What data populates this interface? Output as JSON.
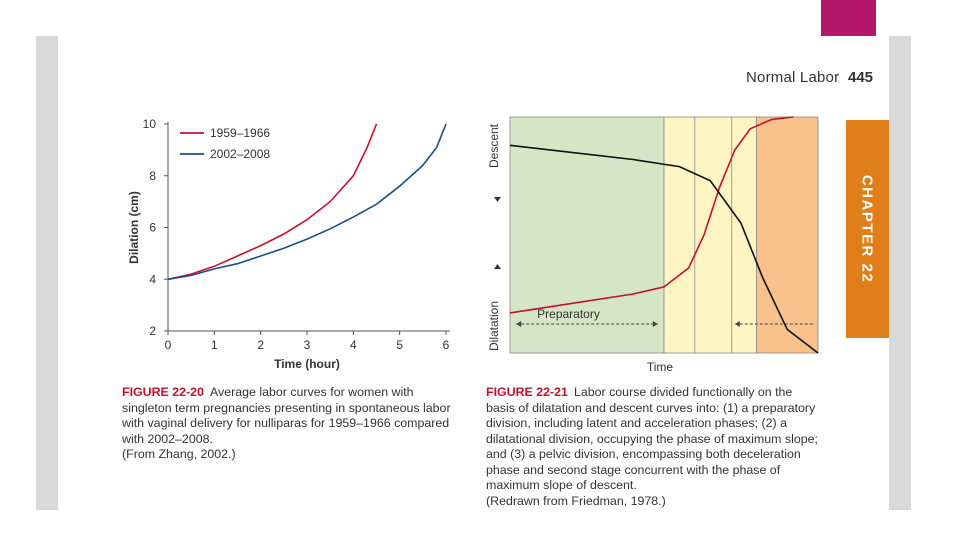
{
  "page": {
    "running_title": "Normal Labor",
    "page_number": "445",
    "chapter_tab": "CHAPTER 22",
    "colors": {
      "accent": "#b5176b",
      "tab": "#e07f1a",
      "red_series": "#c8102e",
      "blue_series": "#1a4f8a"
    }
  },
  "figure_left": {
    "caption_label": "FIGURE 22-20",
    "caption_text": "Average labor curves for women with singleton term pregnancies presenting in spontaneous labor with vaginal delivery for nulliparas for 1959–1966 compared with 2002–2008.",
    "caption_credit": "(From Zhang, 2002.)"
  },
  "figure_right": {
    "caption_label": "FIGURE 22-21",
    "caption_text": "Labor course divided functionally on the basis of dilatation and descent curves into: (1) a preparatory division, including latent and acceleration phases; (2) a dilatational division, occupying the phase of maximum slope; and (3) a pelvic division, encompassing both deceleration phase and second stage concurrent with the phase of maximum slope of descent.",
    "caption_credit": "(Redrawn from Friedman, 1978.)",
    "division_label": "Preparatory",
    "ylabel_top": "Descent",
    "ylabel_bottom": "Dilatation",
    "xlabel": "Time"
  },
  "chart_data": [
    {
      "type": "line",
      "title": "",
      "xlabel": "Time (hour)",
      "ylabel": "Dilation (cm)",
      "xlim": [
        0,
        6
      ],
      "ylim": [
        2,
        10
      ],
      "xticks": [
        0,
        1,
        2,
        3,
        4,
        5,
        6
      ],
      "yticks": [
        2,
        4,
        6,
        8,
        10
      ],
      "grid": false,
      "legend": "top-left",
      "series": [
        {
          "name": "1959–1966",
          "color": "#c8102e",
          "x": [
            0,
            0.5,
            1,
            1.5,
            2,
            2.5,
            3,
            3.5,
            4,
            4.3,
            4.5
          ],
          "y": [
            4,
            4.2,
            4.5,
            4.9,
            5.3,
            5.75,
            6.3,
            7.0,
            8.0,
            9.1,
            10
          ]
        },
        {
          "name": "2002–2008",
          "color": "#1a4f8a",
          "x": [
            0,
            0.5,
            1,
            1.5,
            2,
            2.5,
            3,
            3.5,
            4,
            4.5,
            5,
            5.5,
            5.8,
            6
          ],
          "y": [
            4,
            4.15,
            4.4,
            4.6,
            4.9,
            5.2,
            5.55,
            5.95,
            6.4,
            6.9,
            7.6,
            8.4,
            9.1,
            10
          ]
        }
      ]
    },
    {
      "type": "area",
      "title": "",
      "xlabel": "Time",
      "ylabel": "Dilatation / Descent",
      "xlim": [
        0,
        1
      ],
      "ylim": [
        0,
        1
      ],
      "grid": false,
      "regions": [
        {
          "label": "Preparatory",
          "from": 0.0,
          "to": 0.5,
          "color": "#d5e6c6"
        },
        {
          "label": "",
          "from": 0.5,
          "to": 0.8,
          "color": "#fff5c4"
        },
        {
          "label": "",
          "from": 0.8,
          "to": 1.0,
          "color": "#f9c28c"
        }
      ],
      "series": [
        {
          "name": "",
          "color": "#c8102e",
          "x": [
            0,
            0.2,
            0.4,
            0.5,
            0.58,
            0.63,
            0.68,
            0.73,
            0.78,
            0.85,
            0.92
          ],
          "y": [
            0.17,
            0.21,
            0.25,
            0.28,
            0.36,
            0.5,
            0.7,
            0.86,
            0.95,
            0.99,
            1.0
          ]
        },
        {
          "name": "",
          "color": "#111111",
          "x": [
            0,
            0.2,
            0.4,
            0.55,
            0.65,
            0.75,
            0.82,
            0.9,
            1.0
          ],
          "y": [
            0.88,
            0.85,
            0.82,
            0.79,
            0.73,
            0.55,
            0.32,
            0.1,
            0.0
          ]
        }
      ]
    }
  ]
}
